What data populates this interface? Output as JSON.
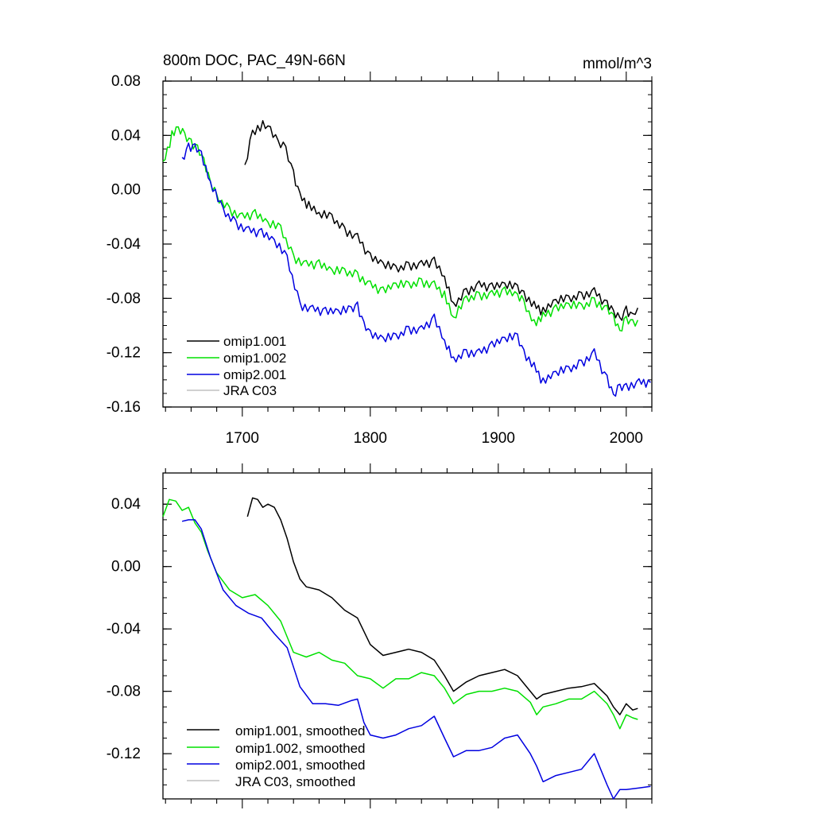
{
  "colors": {
    "omip1_001": "#000000",
    "omip1_002": "#00e000",
    "omip2_001": "#0000e0",
    "jra_c03": "#c0c0c0"
  },
  "chart_data": [
    {
      "type": "line",
      "title": "800m DOC, PAC_49N-66N",
      "units": "mmol/m^3",
      "xlim": [
        1638,
        2020
      ],
      "ylim": [
        -0.16,
        0.08
      ],
      "xticks": [
        1700,
        1800,
        1900,
        2000
      ],
      "xtick_labels": [
        "1700",
        "1800",
        "1900",
        "2000"
      ],
      "yticks": [
        0.08,
        0.04,
        0.0,
        -0.04,
        -0.08,
        -0.12,
        -0.16
      ],
      "ytick_labels": [
        "0.08",
        "0.04",
        "0.00",
        "-0.04",
        "-0.08",
        "-0.12",
        "-0.16"
      ],
      "legend_position": "bottom-left",
      "legend": [
        "omip1.001",
        "omip1.002",
        "omip2.001",
        "JRA C03"
      ],
      "series": [
        {
          "name": "omip1.001",
          "color": "#000000",
          "x": [
            1702,
            1708,
            1712,
            1716,
            1722,
            1728,
            1734,
            1740,
            1745,
            1752,
            1760,
            1770,
            1780,
            1790,
            1800,
            1810,
            1820,
            1830,
            1840,
            1850,
            1858,
            1865,
            1875,
            1885,
            1895,
            1905,
            1915,
            1920,
            1928,
            1935,
            1945,
            1955,
            1965,
            1975,
            1985,
            1990,
            1995,
            2000,
            2005,
            2009
          ],
          "values": [
            0.017,
            0.042,
            0.045,
            0.048,
            0.043,
            0.035,
            0.03,
            0.012,
            -0.005,
            -0.012,
            -0.018,
            -0.02,
            -0.03,
            -0.035,
            -0.05,
            -0.055,
            -0.058,
            -0.056,
            -0.055,
            -0.053,
            -0.065,
            -0.085,
            -0.075,
            -0.07,
            -0.072,
            -0.07,
            -0.072,
            -0.077,
            -0.085,
            -0.09,
            -0.082,
            -0.08,
            -0.078,
            -0.075,
            -0.085,
            -0.09,
            -0.096,
            -0.088,
            -0.094,
            -0.087
          ]
        },
        {
          "name": "omip1.002",
          "color": "#00e000",
          "x": [
            1638,
            1645,
            1650,
            1655,
            1660,
            1665,
            1670,
            1675,
            1680,
            1690,
            1700,
            1710,
            1720,
            1730,
            1740,
            1750,
            1760,
            1770,
            1780,
            1790,
            1800,
            1810,
            1820,
            1830,
            1840,
            1850,
            1858,
            1865,
            1875,
            1885,
            1895,
            1905,
            1915,
            1920,
            1928,
            1935,
            1945,
            1955,
            1965,
            1975,
            1985,
            1990,
            1995,
            2000,
            2005,
            2009
          ],
          "values": [
            0.018,
            0.04,
            0.045,
            0.04,
            0.035,
            0.03,
            0.02,
            0.005,
            -0.005,
            -0.015,
            -0.02,
            -0.018,
            -0.025,
            -0.028,
            -0.05,
            -0.055,
            -0.055,
            -0.06,
            -0.06,
            -0.063,
            -0.07,
            -0.075,
            -0.07,
            -0.07,
            -0.068,
            -0.07,
            -0.078,
            -0.095,
            -0.08,
            -0.078,
            -0.077,
            -0.075,
            -0.078,
            -0.083,
            -0.098,
            -0.093,
            -0.088,
            -0.085,
            -0.086,
            -0.082,
            -0.088,
            -0.095,
            -0.105,
            -0.095,
            -0.098,
            -0.096
          ]
        },
        {
          "name": "omip2.001",
          "color": "#0000e0",
          "x": [
            1653,
            1658,
            1663,
            1668,
            1675,
            1685,
            1695,
            1705,
            1715,
            1725,
            1735,
            1745,
            1755,
            1765,
            1775,
            1785,
            1790,
            1795,
            1800,
            1810,
            1820,
            1830,
            1840,
            1850,
            1858,
            1865,
            1875,
            1885,
            1895,
            1905,
            1915,
            1920,
            1928,
            1935,
            1945,
            1955,
            1965,
            1975,
            1985,
            1990,
            1995,
            2000,
            2010,
            2019
          ],
          "values": [
            0.022,
            0.032,
            0.031,
            0.025,
            0.005,
            -0.015,
            -0.025,
            -0.03,
            -0.032,
            -0.038,
            -0.05,
            -0.085,
            -0.088,
            -0.09,
            -0.09,
            -0.088,
            -0.085,
            -0.1,
            -0.107,
            -0.11,
            -0.108,
            -0.103,
            -0.103,
            -0.095,
            -0.112,
            -0.125,
            -0.12,
            -0.12,
            -0.115,
            -0.11,
            -0.108,
            -0.12,
            -0.13,
            -0.142,
            -0.135,
            -0.132,
            -0.128,
            -0.12,
            -0.14,
            -0.152,
            -0.145,
            -0.145,
            -0.142,
            -0.142
          ]
        },
        {
          "name": "JRA C03",
          "color": "#c0c0c0",
          "x": [],
          "values": []
        }
      ]
    },
    {
      "type": "line",
      "xlim": [
        1638,
        2020
      ],
      "ylim": [
        -0.149,
        0.06
      ],
      "xticks": [
        1700,
        1800,
        1900,
        2000
      ],
      "yticks": [
        0.04,
        0.0,
        -0.04,
        -0.08,
        -0.12
      ],
      "ytick_labels": [
        "0.04",
        "0.00",
        "-0.04",
        "-0.08",
        "-0.12"
      ],
      "legend_position": "bottom-left",
      "legend": [
        "omip1.001, smoothed",
        "omip1.002, smoothed",
        "omip2.001, smoothed",
        "JRA C03, smoothed"
      ],
      "series": [
        {
          "name": "omip1.001, smoothed",
          "color": "#000000",
          "x": [
            1704,
            1708,
            1712,
            1716,
            1720,
            1725,
            1730,
            1735,
            1740,
            1745,
            1750,
            1760,
            1770,
            1780,
            1790,
            1800,
            1810,
            1820,
            1830,
            1840,
            1850,
            1858,
            1865,
            1875,
            1885,
            1895,
            1905,
            1915,
            1925,
            1930,
            1935,
            1945,
            1955,
            1965,
            1975,
            1985,
            1990,
            1995,
            2000,
            2005,
            2009
          ],
          "values": [
            0.032,
            0.044,
            0.043,
            0.038,
            0.04,
            0.038,
            0.03,
            0.018,
            0.003,
            -0.008,
            -0.013,
            -0.015,
            -0.02,
            -0.028,
            -0.033,
            -0.05,
            -0.057,
            -0.055,
            -0.053,
            -0.055,
            -0.06,
            -0.07,
            -0.08,
            -0.074,
            -0.07,
            -0.068,
            -0.066,
            -0.07,
            -0.08,
            -0.085,
            -0.082,
            -0.08,
            -0.078,
            -0.077,
            -0.075,
            -0.083,
            -0.09,
            -0.095,
            -0.088,
            -0.092,
            -0.091
          ]
        },
        {
          "name": "omip1.002, smoothed",
          "color": "#00e000",
          "x": [
            1638,
            1643,
            1648,
            1653,
            1658,
            1663,
            1668,
            1673,
            1680,
            1690,
            1700,
            1710,
            1720,
            1730,
            1740,
            1750,
            1760,
            1770,
            1780,
            1790,
            1800,
            1810,
            1820,
            1830,
            1840,
            1850,
            1858,
            1865,
            1875,
            1885,
            1895,
            1905,
            1915,
            1925,
            1930,
            1935,
            1945,
            1955,
            1965,
            1975,
            1985,
            1990,
            1995,
            2000,
            2005,
            2009
          ],
          "values": [
            0.032,
            0.043,
            0.042,
            0.036,
            0.038,
            0.028,
            0.022,
            0.01,
            -0.004,
            -0.015,
            -0.02,
            -0.018,
            -0.025,
            -0.035,
            -0.055,
            -0.058,
            -0.055,
            -0.06,
            -0.062,
            -0.07,
            -0.072,
            -0.078,
            -0.072,
            -0.072,
            -0.068,
            -0.07,
            -0.078,
            -0.088,
            -0.082,
            -0.08,
            -0.08,
            -0.078,
            -0.08,
            -0.087,
            -0.095,
            -0.09,
            -0.088,
            -0.085,
            -0.085,
            -0.08,
            -0.088,
            -0.095,
            -0.104,
            -0.095,
            -0.097,
            -0.098
          ]
        },
        {
          "name": "omip2.001, smoothed",
          "color": "#0000e0",
          "x": [
            1653,
            1658,
            1663,
            1668,
            1675,
            1685,
            1695,
            1705,
            1715,
            1725,
            1735,
            1745,
            1755,
            1765,
            1775,
            1785,
            1790,
            1795,
            1800,
            1810,
            1820,
            1830,
            1840,
            1850,
            1858,
            1865,
            1875,
            1885,
            1895,
            1905,
            1915,
            1925,
            1930,
            1935,
            1945,
            1955,
            1965,
            1975,
            1985,
            1990,
            1995,
            2000,
            2010,
            2019
          ],
          "values": [
            0.029,
            0.03,
            0.03,
            0.024,
            0.006,
            -0.015,
            -0.025,
            -0.03,
            -0.033,
            -0.043,
            -0.052,
            -0.077,
            -0.088,
            -0.088,
            -0.089,
            -0.086,
            -0.085,
            -0.1,
            -0.108,
            -0.11,
            -0.108,
            -0.104,
            -0.102,
            -0.096,
            -0.11,
            -0.122,
            -0.118,
            -0.118,
            -0.116,
            -0.11,
            -0.108,
            -0.12,
            -0.128,
            -0.138,
            -0.134,
            -0.132,
            -0.13,
            -0.12,
            -0.14,
            -0.149,
            -0.143,
            -0.143,
            -0.142,
            -0.141
          ]
        },
        {
          "name": "JRA C03, smoothed",
          "color": "#c0c0c0",
          "x": [],
          "values": []
        }
      ]
    }
  ]
}
